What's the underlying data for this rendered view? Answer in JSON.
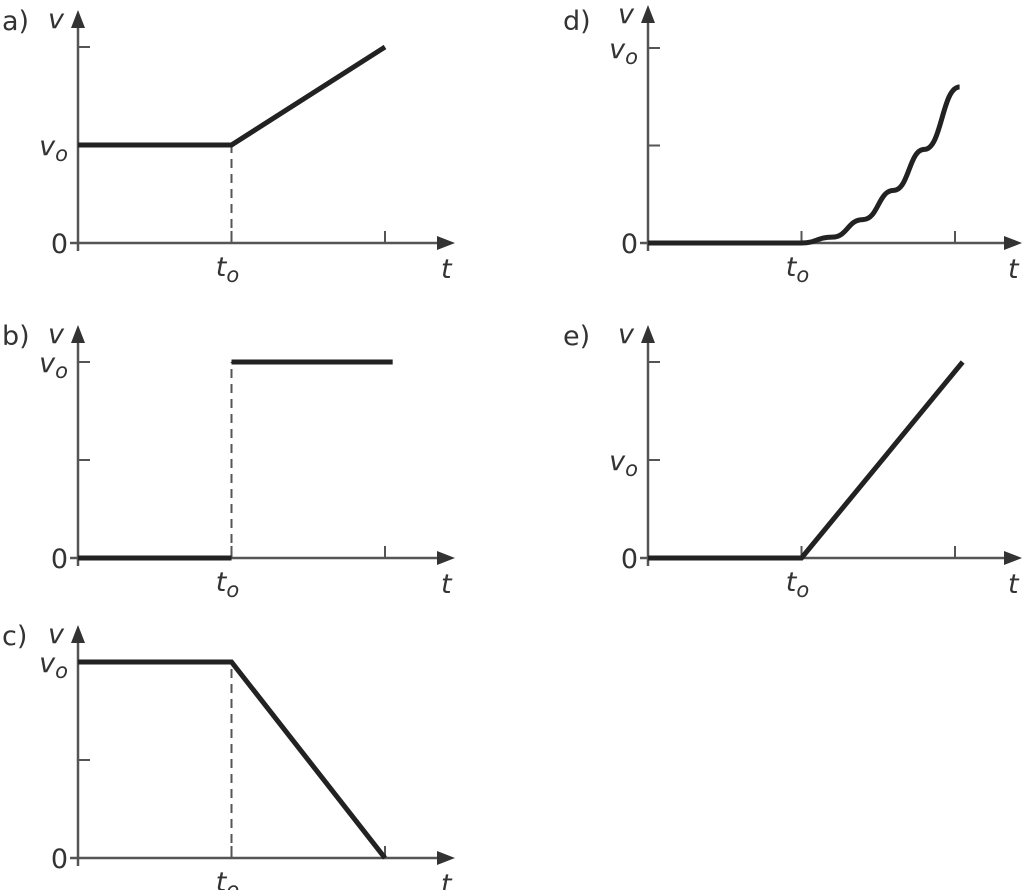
{
  "chart_data": [
    {
      "type": "line",
      "panel_label": "a)",
      "xlabel": "t",
      "ylabel": "v",
      "x_ticks": [
        {
          "value": 1,
          "label": {
            "main": "t",
            "sub": "o"
          }
        },
        {
          "value": 2,
          "label": null
        }
      ],
      "y_ticks": [
        {
          "value": 0,
          "label": {
            "main": "0",
            "sub": ""
          }
        },
        {
          "value": 1,
          "label": {
            "main": "v",
            "sub": "o"
          }
        },
        {
          "value": 2,
          "label": null
        }
      ],
      "series": [
        {
          "points": [
            [
              0,
              1
            ],
            [
              1,
              1
            ],
            [
              2,
              2
            ]
          ],
          "style": "solid"
        }
      ],
      "guides": [
        {
          "points": [
            [
              1,
              0
            ],
            [
              1,
              1
            ]
          ],
          "style": "dashed"
        }
      ],
      "color": "#222222"
    },
    {
      "type": "line",
      "panel_label": "b)",
      "xlabel": "t",
      "ylabel": "v",
      "x_ticks": [
        {
          "value": 1,
          "label": {
            "main": "t",
            "sub": "o"
          }
        },
        {
          "value": 2,
          "label": null
        }
      ],
      "y_ticks": [
        {
          "value": 0,
          "label": {
            "main": "0",
            "sub": ""
          }
        },
        {
          "value": 0.5,
          "label": null
        },
        {
          "value": 1,
          "label": {
            "main": "v",
            "sub": "o"
          }
        }
      ],
      "series": [
        {
          "points": [
            [
              0,
              0
            ],
            [
              1,
              0
            ]
          ],
          "style": "solid"
        },
        {
          "points": [
            [
              1,
              1
            ],
            [
              2.05,
              1
            ]
          ],
          "style": "solid"
        }
      ],
      "guides": [
        {
          "points": [
            [
              1,
              0
            ],
            [
              1,
              1
            ]
          ],
          "style": "dashed"
        }
      ],
      "color": "#222222"
    },
    {
      "type": "line",
      "panel_label": "c)",
      "xlabel": "t",
      "ylabel": "v",
      "x_ticks": [
        {
          "value": 1,
          "label": {
            "main": "t",
            "sub": "o"
          }
        },
        {
          "value": 2,
          "label": null
        }
      ],
      "y_ticks": [
        {
          "value": 0,
          "label": {
            "main": "0",
            "sub": ""
          }
        },
        {
          "value": 0.5,
          "label": null
        },
        {
          "value": 1,
          "label": {
            "main": "v",
            "sub": "o"
          }
        }
      ],
      "series": [
        {
          "points": [
            [
              0,
              1
            ],
            [
              1,
              1
            ],
            [
              2,
              0
            ]
          ],
          "style": "solid"
        }
      ],
      "guides": [
        {
          "points": [
            [
              1,
              0
            ],
            [
              1,
              1
            ]
          ],
          "style": "dashed"
        }
      ],
      "color": "#222222"
    },
    {
      "type": "line",
      "panel_label": "d)",
      "xlabel": "t",
      "ylabel": "v",
      "x_ticks": [
        {
          "value": 1,
          "label": {
            "main": "t",
            "sub": "o"
          }
        },
        {
          "value": 2,
          "label": null
        }
      ],
      "y_ticks": [
        {
          "value": 0,
          "label": {
            "main": "0",
            "sub": ""
          }
        },
        {
          "value": 0.5,
          "label": null
        },
        {
          "value": 1,
          "label": {
            "main": "v",
            "sub": "o"
          }
        }
      ],
      "series": [
        {
          "points": [
            [
              0,
              0
            ],
            [
              1,
              0
            ],
            [
              1.2,
              0.03
            ],
            [
              1.4,
              0.12
            ],
            [
              1.6,
              0.27
            ],
            [
              1.8,
              0.48
            ],
            [
              2.03,
              0.8
            ]
          ],
          "style": "smooth"
        }
      ],
      "guides": [],
      "color": "#222222"
    },
    {
      "type": "line",
      "panel_label": "e)",
      "xlabel": "t",
      "ylabel": "v",
      "x_ticks": [
        {
          "value": 1,
          "label": {
            "main": "t",
            "sub": "o"
          }
        },
        {
          "value": 2,
          "label": null
        }
      ],
      "y_ticks": [
        {
          "value": 0,
          "label": {
            "main": "0",
            "sub": ""
          }
        },
        {
          "value": 1,
          "label": {
            "main": "v",
            "sub": "o"
          }
        },
        {
          "value": 2,
          "label": null
        }
      ],
      "series": [
        {
          "points": [
            [
              0,
              0
            ],
            [
              1,
              0
            ],
            [
              2.05,
              2
            ]
          ],
          "style": "solid"
        }
      ],
      "guides": [],
      "color": "#222222"
    }
  ]
}
